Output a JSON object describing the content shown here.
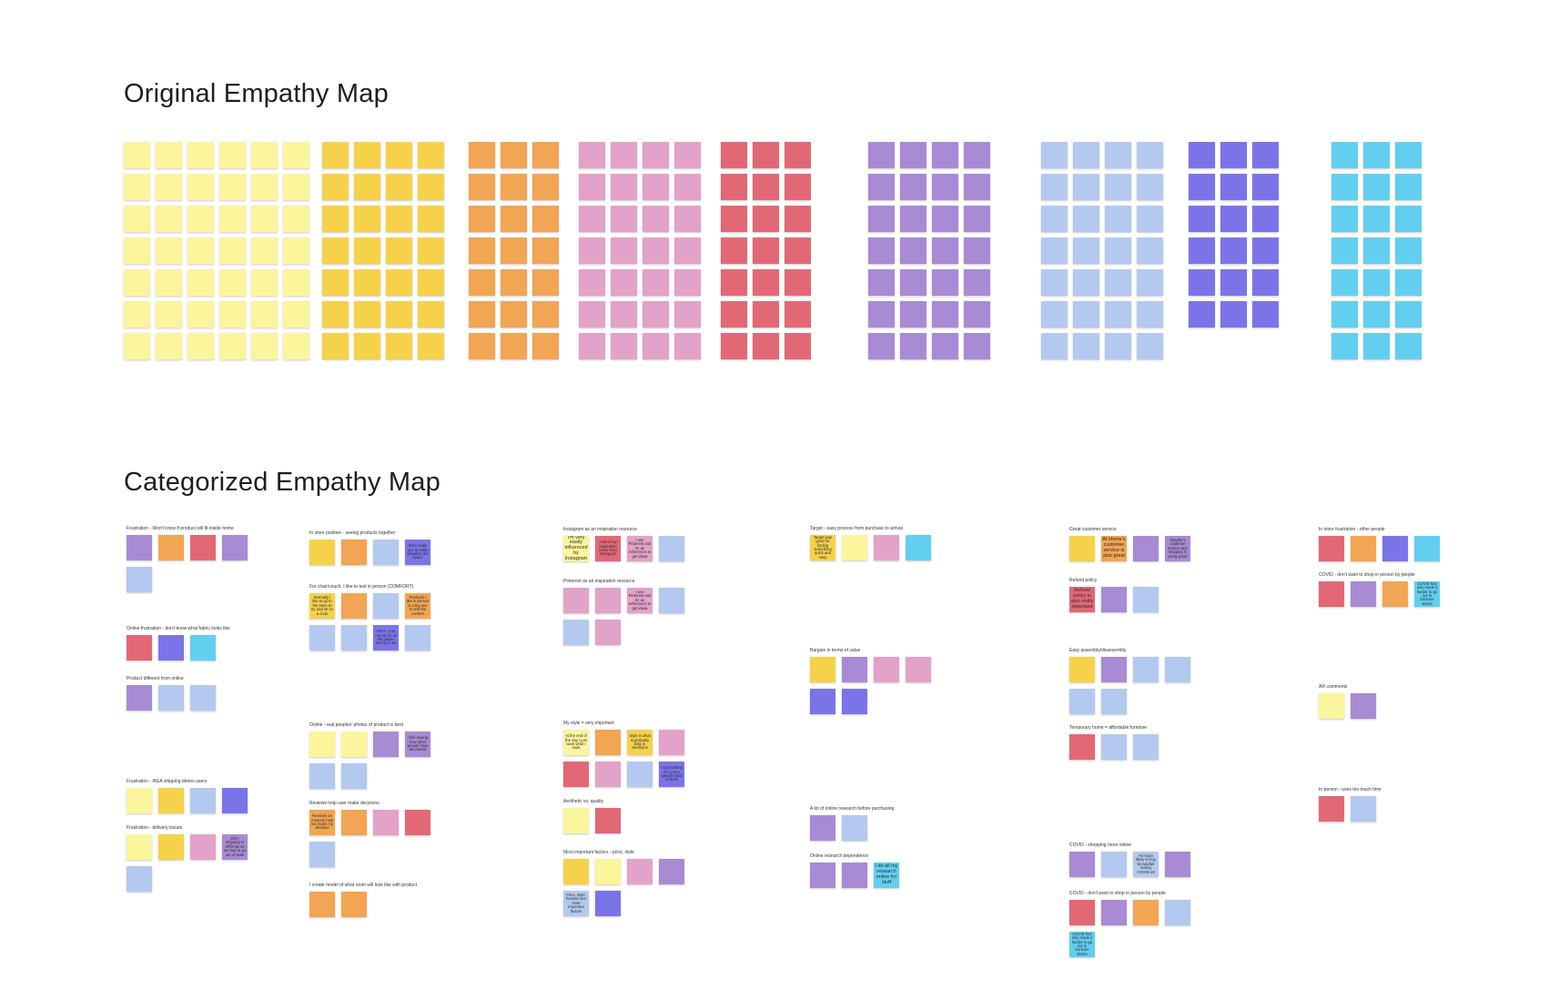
{
  "board": {
    "title_original": "Original Empathy Map",
    "title_categorized": "Categorized Empathy Map"
  },
  "colors": {
    "light_yellow": "#fbf59c",
    "yellow": "#f5d24a",
    "orange": "#f2a552",
    "pink": "#e3a2c8",
    "red": "#e36876",
    "purple": "#a98ad4",
    "light_blue": "#b4c9ef",
    "indigo": "#7b74e8",
    "cyan": "#62cff0"
  },
  "original_map": {
    "groups": [
      {
        "color": "light_yellow",
        "columns": 6,
        "rows": 7
      },
      {
        "color": "yellow",
        "columns": 4,
        "rows": 7
      },
      {
        "color": "orange",
        "columns": 3,
        "rows": 7
      },
      {
        "color": "pink",
        "columns": 4,
        "rows": 7
      },
      {
        "color": "red",
        "columns": 3,
        "rows": 7
      },
      {
        "color": "purple",
        "columns": 4,
        "rows": 7
      },
      {
        "color": "light_blue",
        "columns": 4,
        "rows": 7
      },
      {
        "color": "indigo",
        "columns": 3,
        "rows": 6
      },
      {
        "color": "cyan",
        "columns": 3,
        "rows": 7
      }
    ]
  },
  "categorized_map": {
    "categories": [
      {
        "caption": "Frustration - Won't know if product will fit inside home",
        "notes": [
          {
            "color": "purple",
            "text": ""
          },
          {
            "color": "orange",
            "text": ""
          },
          {
            "color": "red",
            "text": ""
          },
          {
            "color": "purple",
            "text": ""
          },
          {
            "color": "light_blue",
            "text": ""
          }
        ]
      },
      {
        "caption": "Online frustration - don't know what fabric looks like",
        "notes": [
          {
            "color": "red",
            "text": ""
          },
          {
            "color": "indigo",
            "text": ""
          },
          {
            "color": "cyan",
            "text": ""
          }
        ]
      },
      {
        "caption": "Product different from online",
        "notes": [
          {
            "color": "purple",
            "text": ""
          },
          {
            "color": "light_blue",
            "text": ""
          },
          {
            "color": "light_blue",
            "text": ""
          }
        ]
      },
      {
        "caption": "Frustration - IKEA shipping deters users",
        "notes": [
          {
            "color": "light_yellow",
            "text": ""
          },
          {
            "color": "yellow",
            "text": ""
          },
          {
            "color": "light_blue",
            "text": ""
          },
          {
            "color": "indigo",
            "text": ""
          }
        ]
      },
      {
        "caption": "Frustration - delivery issues",
        "notes": [
          {
            "color": "light_yellow",
            "text": ""
          },
          {
            "color": "yellow",
            "text": ""
          },
          {
            "color": "pink",
            "text": ""
          },
          {
            "color": "purple",
            "text": "IKEA shipping is off-limits so we had to go out of state"
          },
          {
            "color": "light_blue",
            "text": ""
          }
        ]
      },
      {
        "caption": "In store positive - seeing products together",
        "notes": [
          {
            "color": "yellow",
            "text": ""
          },
          {
            "color": "orange",
            "text": ""
          },
          {
            "color": "light_blue",
            "text": ""
          },
          {
            "color": "indigo",
            "text": "IKEA helps you to really visualize the space"
          }
        ]
      },
      {
        "caption": "For chair/couch, I like to test in person (COMFORT)",
        "notes": [
          {
            "color": "yellow",
            "text": "Normally I like to go to the store to try and sit on a chair"
          },
          {
            "color": "orange",
            "text": ""
          },
          {
            "color": "light_blue",
            "text": ""
          },
          {
            "color": "orange",
            "text": "Products I like in person is a big one to test the comfort"
          },
          {
            "color": "light_blue",
            "text": ""
          },
          {
            "color": "light_blue",
            "text": ""
          },
          {
            "color": "indigo",
            "text": "IKEA - you can sit on all the places and try it out"
          },
          {
            "color": "light_blue",
            "text": ""
          }
        ]
      },
      {
        "caption": "Online - real peoples' photos of product is best",
        "notes": [
          {
            "color": "light_yellow",
            "text": ""
          },
          {
            "color": "light_yellow",
            "text": ""
          },
          {
            "color": "purple",
            "text": ""
          },
          {
            "color": "purple",
            "text": "I like seeing how other people have decorated"
          },
          {
            "color": "light_blue",
            "text": ""
          },
          {
            "color": "light_blue",
            "text": ""
          }
        ]
      },
      {
        "caption": "Reviews help user make decisions",
        "notes": [
          {
            "color": "orange",
            "text": "Reviews on Amazon help me make my decision"
          },
          {
            "color": "orange",
            "text": ""
          },
          {
            "color": "pink",
            "text": ""
          },
          {
            "color": "red",
            "text": ""
          },
          {
            "color": "light_blue",
            "text": ""
          }
        ]
      },
      {
        "caption": "I create model of what room will look like with product",
        "notes": [
          {
            "color": "orange",
            "text": ""
          },
          {
            "color": "orange",
            "text": ""
          }
        ]
      },
      {
        "caption": "Instagram as an inspiration resource",
        "notes": [
          {
            "color": "light_yellow",
            "text": "I'm very easily influenced by Instagram"
          },
          {
            "color": "red",
            "text": "A lot of my inspiration came from Instagram"
          },
          {
            "color": "pink",
            "text": "I use Pinterest and IG as references to get ideas"
          },
          {
            "color": "light_blue",
            "text": ""
          }
        ]
      },
      {
        "caption": "Pinterest as an inspiration resource",
        "notes": [
          {
            "color": "pink",
            "text": ""
          },
          {
            "color": "pink",
            "text": ""
          },
          {
            "color": "pink",
            "text": "I use Pinterest and IG as references to get ideas"
          },
          {
            "color": "light_blue",
            "text": ""
          },
          {
            "color": "light_blue",
            "text": ""
          },
          {
            "color": "pink",
            "text": ""
          }
        ]
      },
      {
        "caption": "My style = very important",
        "notes": [
          {
            "color": "light_yellow",
            "text": "At the end of the day I just want what I want"
          },
          {
            "color": "orange",
            "text": ""
          },
          {
            "color": "yellow",
            "text": "Style is what is probably king in decisions"
          },
          {
            "color": "pink",
            "text": ""
          },
          {
            "color": "red",
            "text": ""
          },
          {
            "color": "pink",
            "text": ""
          },
          {
            "color": "light_blue",
            "text": ""
          },
          {
            "color": "indigo",
            "text": "I was looking for a very specific kind of desk"
          }
        ]
      },
      {
        "caption": "Aesthetic vs. quality",
        "notes": [
          {
            "color": "light_yellow",
            "text": ""
          },
          {
            "color": "red",
            "text": ""
          }
        ]
      },
      {
        "caption": "Most important factors - price, style",
        "notes": [
          {
            "color": "yellow",
            "text": ""
          },
          {
            "color": "light_yellow",
            "text": ""
          },
          {
            "color": "pink",
            "text": ""
          },
          {
            "color": "purple",
            "text": ""
          },
          {
            "color": "light_blue",
            "text": "Price, style, function are most important factors"
          },
          {
            "color": "indigo",
            "text": ""
          }
        ]
      },
      {
        "caption": "Target - easy process from purchase to arrival",
        "notes": [
          {
            "color": "yellow",
            "text": "Target was good for finding something quick and easy"
          },
          {
            "color": "light_yellow",
            "text": ""
          },
          {
            "color": "pink",
            "text": ""
          },
          {
            "color": "cyan",
            "text": ""
          }
        ]
      },
      {
        "caption": "Bargain in terms of value",
        "notes": [
          {
            "color": "yellow",
            "text": ""
          },
          {
            "color": "purple",
            "text": ""
          },
          {
            "color": "pink",
            "text": ""
          },
          {
            "color": "pink",
            "text": ""
          },
          {
            "color": "indigo",
            "text": ""
          },
          {
            "color": "indigo",
            "text": ""
          }
        ]
      },
      {
        "caption": "A lot of online research before purchasing",
        "notes": [
          {
            "color": "purple",
            "text": ""
          },
          {
            "color": "light_blue",
            "text": ""
          }
        ]
      },
      {
        "caption": "Online research dependence",
        "notes": [
          {
            "color": "purple",
            "text": ""
          },
          {
            "color": "purple",
            "text": ""
          },
          {
            "color": "cyan",
            "text": "I do all my research online for stuff"
          }
        ]
      },
      {
        "caption": "Great customer service",
        "notes": [
          {
            "color": "yellow",
            "text": ""
          },
          {
            "color": "orange",
            "text": "At Home's customer service is also great"
          },
          {
            "color": "purple",
            "text": ""
          },
          {
            "color": "purple",
            "text": "Wayfair's customer service and shipping is pretty good"
          }
        ]
      },
      {
        "caption": "Refund policy",
        "notes": [
          {
            "color": "red",
            "text": "Refund policy is also really important"
          },
          {
            "color": "purple",
            "text": ""
          },
          {
            "color": "light_blue",
            "text": ""
          }
        ]
      },
      {
        "caption": "Easy assembly/disassembly",
        "notes": [
          {
            "color": "yellow",
            "text": ""
          },
          {
            "color": "purple",
            "text": ""
          },
          {
            "color": "light_blue",
            "text": ""
          },
          {
            "color": "light_blue",
            "text": ""
          },
          {
            "color": "light_blue",
            "text": ""
          },
          {
            "color": "light_blue",
            "text": ""
          }
        ]
      },
      {
        "caption": "Temporary home = affordable furniture",
        "notes": [
          {
            "color": "red",
            "text": ""
          },
          {
            "color": "light_blue",
            "text": ""
          },
          {
            "color": "light_blue",
            "text": ""
          }
        ]
      },
      {
        "caption": "COVID - shopping more online",
        "notes": [
          {
            "color": "purple",
            "text": ""
          },
          {
            "color": "light_blue",
            "text": ""
          },
          {
            "color": "light_blue",
            "text": "I'm more likely to buy by wayfair during COVID-19"
          },
          {
            "color": "purple",
            "text": ""
          }
        ]
      },
      {
        "caption": "COVID - don't want to shop in person by people",
        "notes": [
          {
            "color": "red",
            "text": ""
          },
          {
            "color": "purple",
            "text": ""
          },
          {
            "color": "orange",
            "text": ""
          },
          {
            "color": "light_blue",
            "text": ""
          },
          {
            "color": "cyan",
            "text": "COVID has only made it harder to go out to furniture stores"
          }
        ]
      },
      {
        "caption": "In store frustration - other people",
        "notes": [
          {
            "color": "red",
            "text": ""
          },
          {
            "color": "orange",
            "text": ""
          },
          {
            "color": "indigo",
            "text": ""
          },
          {
            "color": "cyan",
            "text": ""
          }
        ]
      },
      {
        "caption": "COVID - don't want to shop in person by people",
        "notes": [
          {
            "color": "red",
            "text": ""
          },
          {
            "color": "purple",
            "text": ""
          },
          {
            "color": "orange",
            "text": ""
          },
          {
            "color": "cyan",
            "text": "COVID has only made it harder to go out to furniture stores"
          }
        ]
      },
      {
        "caption": "AR comments",
        "notes": [
          {
            "color": "light_yellow",
            "text": ""
          },
          {
            "color": "purple",
            "text": ""
          }
        ]
      },
      {
        "caption": "In person - uses too much time",
        "notes": [
          {
            "color": "red",
            "text": ""
          },
          {
            "color": "light_blue",
            "text": ""
          }
        ]
      }
    ]
  }
}
